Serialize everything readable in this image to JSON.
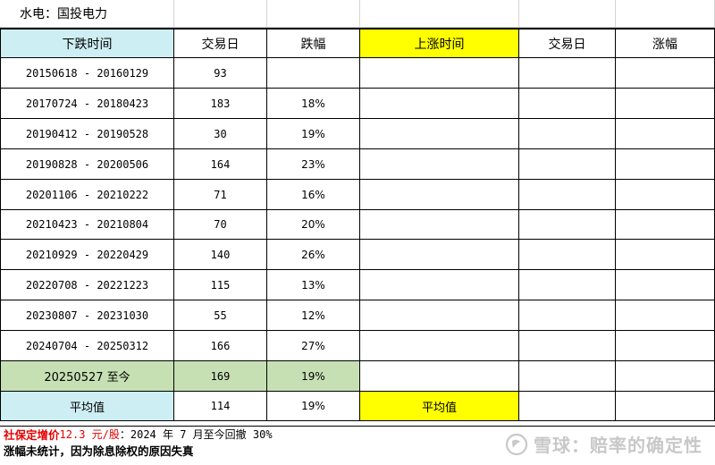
{
  "sheet_title": "水电：国投电力",
  "headers": {
    "fall_period": "下跌时间",
    "fall_days": "交易日",
    "fall_pct": "跌幅",
    "rise_period": "上涨时间",
    "rise_days": "交易日",
    "rise_pct": "涨幅"
  },
  "rows": [
    {
      "period": "20150618 - 20160129",
      "days": "93",
      "pct": ""
    },
    {
      "period": "20170724 - 20180423",
      "days": "183",
      "pct": "18%"
    },
    {
      "period": "20190412 - 20190528",
      "days": "30",
      "pct": "19%"
    },
    {
      "period": "20190828 - 20200506",
      "days": "164",
      "pct": "23%"
    },
    {
      "period": "20201106 - 20210222",
      "days": "71",
      "pct": "16%"
    },
    {
      "period": "20210423 - 20210804",
      "days": "70",
      "pct": "20%"
    },
    {
      "period": "20210929 - 20220429",
      "days": "140",
      "pct": "26%"
    },
    {
      "period": "20220708 - 20221223",
      "days": "115",
      "pct": "13%"
    },
    {
      "period": "20230807 - 20231030",
      "days": "55",
      "pct": "12%"
    },
    {
      "period": "20240704 - 20250312",
      "days": "166",
      "pct": "27%"
    }
  ],
  "current_row": {
    "period": "20250527 至今",
    "days": "169",
    "pct": "19%"
  },
  "average_row": {
    "label": "平均值",
    "days": "114",
    "pct": "19%",
    "rise_label": "平均值"
  },
  "note1": {
    "part1": "社保定增价",
    "part2": " 12.3 元/股",
    "part3": "：2024 年 7 月至今回撤 30%"
  },
  "note2": "涨幅未统计，因为除息除权的原因失真",
  "watermark": "雪球：赔率的确定性",
  "colors": {
    "header_cyan": "#cdeef3",
    "header_yellow": "#ffff00",
    "current_green": "#c6e0b4",
    "note_red": "#e60000"
  }
}
